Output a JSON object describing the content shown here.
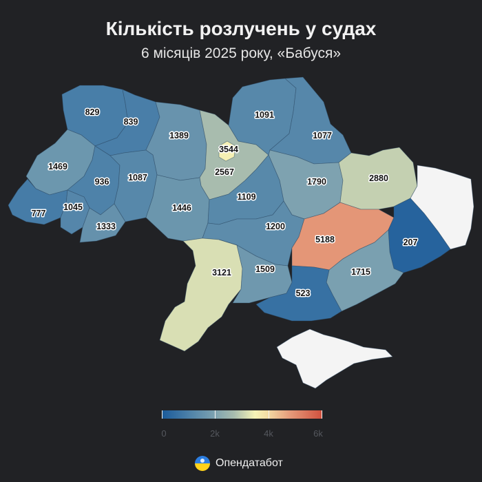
{
  "header": {
    "title": "Кількість розлучень у судах",
    "subtitle": "6 місяців 2025 року, «Бабуся»"
  },
  "regions": [
    {
      "key": "volyn",
      "value": 829
    },
    {
      "key": "rivne",
      "value": 839
    },
    {
      "key": "zhytomyr",
      "value": 1389
    },
    {
      "key": "kyiv_city",
      "value": 3544
    },
    {
      "key": "kyiv_oblast",
      "value": 2567
    },
    {
      "key": "chernihiv",
      "value": 1091
    },
    {
      "key": "sumy",
      "value": 1077
    },
    {
      "key": "lviv",
      "value": 1469
    },
    {
      "key": "ternopil",
      "value": 936
    },
    {
      "key": "khmelnytskyi",
      "value": 1087
    },
    {
      "key": "poltava",
      "value": 1790
    },
    {
      "key": "kharkiv",
      "value": 2880
    },
    {
      "key": "luhansk",
      "value": null
    },
    {
      "key": "zakarpattia",
      "value": 777
    },
    {
      "key": "ivano_frankivsk",
      "value": 1045
    },
    {
      "key": "chernivtsi",
      "value": 1333
    },
    {
      "key": "vinnytsia",
      "value": 1446
    },
    {
      "key": "cherkasy",
      "value": 1109
    },
    {
      "key": "kirovohrad",
      "value": 1200
    },
    {
      "key": "dnipropetrovsk",
      "value": 5188
    },
    {
      "key": "donetsk",
      "value": 207
    },
    {
      "key": "odesa",
      "value": 3121
    },
    {
      "key": "mykolaiv",
      "value": 1509
    },
    {
      "key": "zaporizhzhia",
      "value": 1715
    },
    {
      "key": "kherson",
      "value": 523
    },
    {
      "key": "crimea",
      "value": null
    }
  ],
  "legend": {
    "min": 0,
    "max": 6000,
    "ticks": [
      {
        "value": 0,
        "label": "0"
      },
      {
        "value": 2000,
        "label": "2k"
      },
      {
        "value": 4000,
        "label": "4k"
      },
      {
        "value": 6000,
        "label": "6k"
      }
    ]
  },
  "colors": {
    "background": "#212225",
    "no_data": "#f4f4f4",
    "scale": [
      "#1a5a9a",
      "#4a7fa8",
      "#7aa0b0",
      "#a8bcae",
      "#f5f3b7",
      "#f3dca4",
      "#e59a7a",
      "#d0503e"
    ]
  },
  "brand": {
    "name": "Опендатабот",
    "logo_icon": "opendatabot-logo-icon"
  }
}
